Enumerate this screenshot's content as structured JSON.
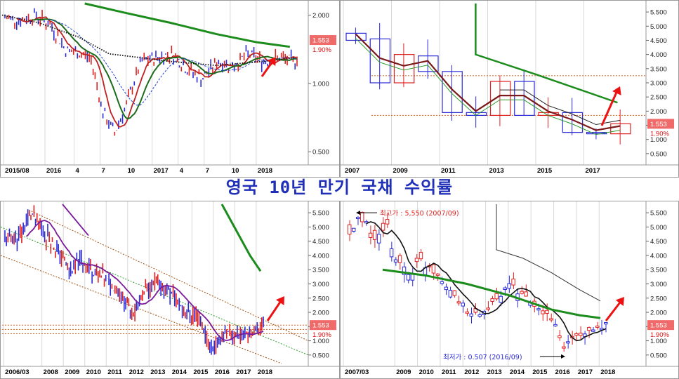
{
  "page_title": "영국 10년 만기 국채 수익률",
  "current_value": "1.553",
  "current_pct": "1.90%",
  "colors": {
    "up": "#e02020",
    "down": "#2a2ad6",
    "ma_long": "#1c8c1c",
    "trend_arrow": "#ee1111",
    "title": "#1f2fb8"
  },
  "chart_data": [
    {
      "id": "daily",
      "type": "line",
      "y_ticks": [
        "2.000",
        "1.000",
        "0.500"
      ],
      "y_tick_values": [
        2.0,
        1.0,
        0.5
      ],
      "x_ticks": [
        "2015/08",
        "2016",
        "4",
        "7",
        "10",
        "2017",
        "4",
        "7",
        "10",
        "2018"
      ],
      "series": [
        {
          "x": [
            0,
            0.05,
            0.1,
            0.15,
            0.2,
            0.25,
            0.28,
            0.32,
            0.36,
            0.4,
            0.45,
            0.5,
            0.55,
            0.6,
            0.65,
            0.7,
            0.75,
            0.8,
            0.85,
            0.9,
            0.95,
            1.0
          ],
          "values": [
            1.95,
            1.9,
            2.0,
            1.8,
            1.4,
            1.35,
            1.3,
            0.75,
            0.6,
            0.8,
            1.25,
            1.3,
            1.35,
            1.15,
            1.05,
            1.25,
            1.2,
            1.35,
            1.25,
            1.3,
            1.25,
            1.553
          ]
        }
      ],
      "ylim": [
        0.45,
        2.25
      ]
    },
    {
      "id": "yearly",
      "type": "bar",
      "y_ticks": [
        "5.500",
        "5.000",
        "4.500",
        "4.000",
        "3.500",
        "3.000",
        "2.500",
        "2.000",
        "1.500",
        "1.000",
        "0.500"
      ],
      "x_ticks": [
        "2007",
        "2009",
        "2011",
        "2013",
        "2015",
        "2017"
      ],
      "categories": [
        "2007",
        "2008",
        "2009",
        "2010",
        "2011",
        "2012",
        "2013",
        "2014",
        "2015",
        "2016",
        "2017",
        "2018"
      ],
      "open": [
        4.75,
        4.55,
        3.0,
        3.95,
        3.4,
        1.95,
        1.85,
        3.05,
        1.85,
        1.95,
        1.25,
        1.2
      ],
      "close": [
        4.5,
        3.0,
        4.0,
        3.4,
        1.95,
        1.85,
        3.05,
        1.85,
        1.95,
        1.25,
        1.2,
        1.553
      ],
      "ylim": [
        0.2,
        5.8
      ]
    },
    {
      "id": "weekly",
      "type": "line",
      "y_ticks": [
        "5.500",
        "5.000",
        "4.500",
        "4.000",
        "3.500",
        "3.000",
        "2.500",
        "2.000",
        "1.500",
        "1.000",
        "0.500"
      ],
      "x_ticks": [
        "2006/03",
        "2008",
        "2009",
        "2010",
        "2011",
        "2012",
        "2013",
        "2014",
        "2015",
        "2016",
        "2017",
        "2018"
      ],
      "series": [
        {
          "x": [
            0,
            0.06,
            0.1,
            0.14,
            0.2,
            0.25,
            0.3,
            0.35,
            0.4,
            0.45,
            0.5,
            0.55,
            0.6,
            0.65,
            0.7,
            0.75,
            0.8,
            0.85,
            0.9,
            0.95,
            1.0
          ],
          "values": [
            4.5,
            4.7,
            5.5,
            5.0,
            4.2,
            3.5,
            3.8,
            3.4,
            3.1,
            2.6,
            2.0,
            2.9,
            3.0,
            2.6,
            2.0,
            1.8,
            0.7,
            1.3,
            1.2,
            1.3,
            1.553
          ]
        }
      ],
      "ylim": [
        0.2,
        5.8
      ]
    },
    {
      "id": "monthly",
      "type": "bar",
      "y_ticks": [
        "5.500",
        "5.000",
        "4.500",
        "4.000",
        "3.500",
        "3.000",
        "2.500",
        "2.000",
        "1.500",
        "1.000",
        "0.500"
      ],
      "x_ticks": [
        "2007/03",
        "2009",
        "2010",
        "2011",
        "2012",
        "2013",
        "2014",
        "2015",
        "2016",
        "2017",
        "2018"
      ],
      "annotations": [
        {
          "label": "최고가 : 5,550 (2007/09)",
          "color": "#e02020"
        },
        {
          "label": "최저가 : 0.507 (2016/09)",
          "color": "#2a2ad6"
        }
      ],
      "ylim": [
        0.2,
        5.8
      ]
    }
  ]
}
